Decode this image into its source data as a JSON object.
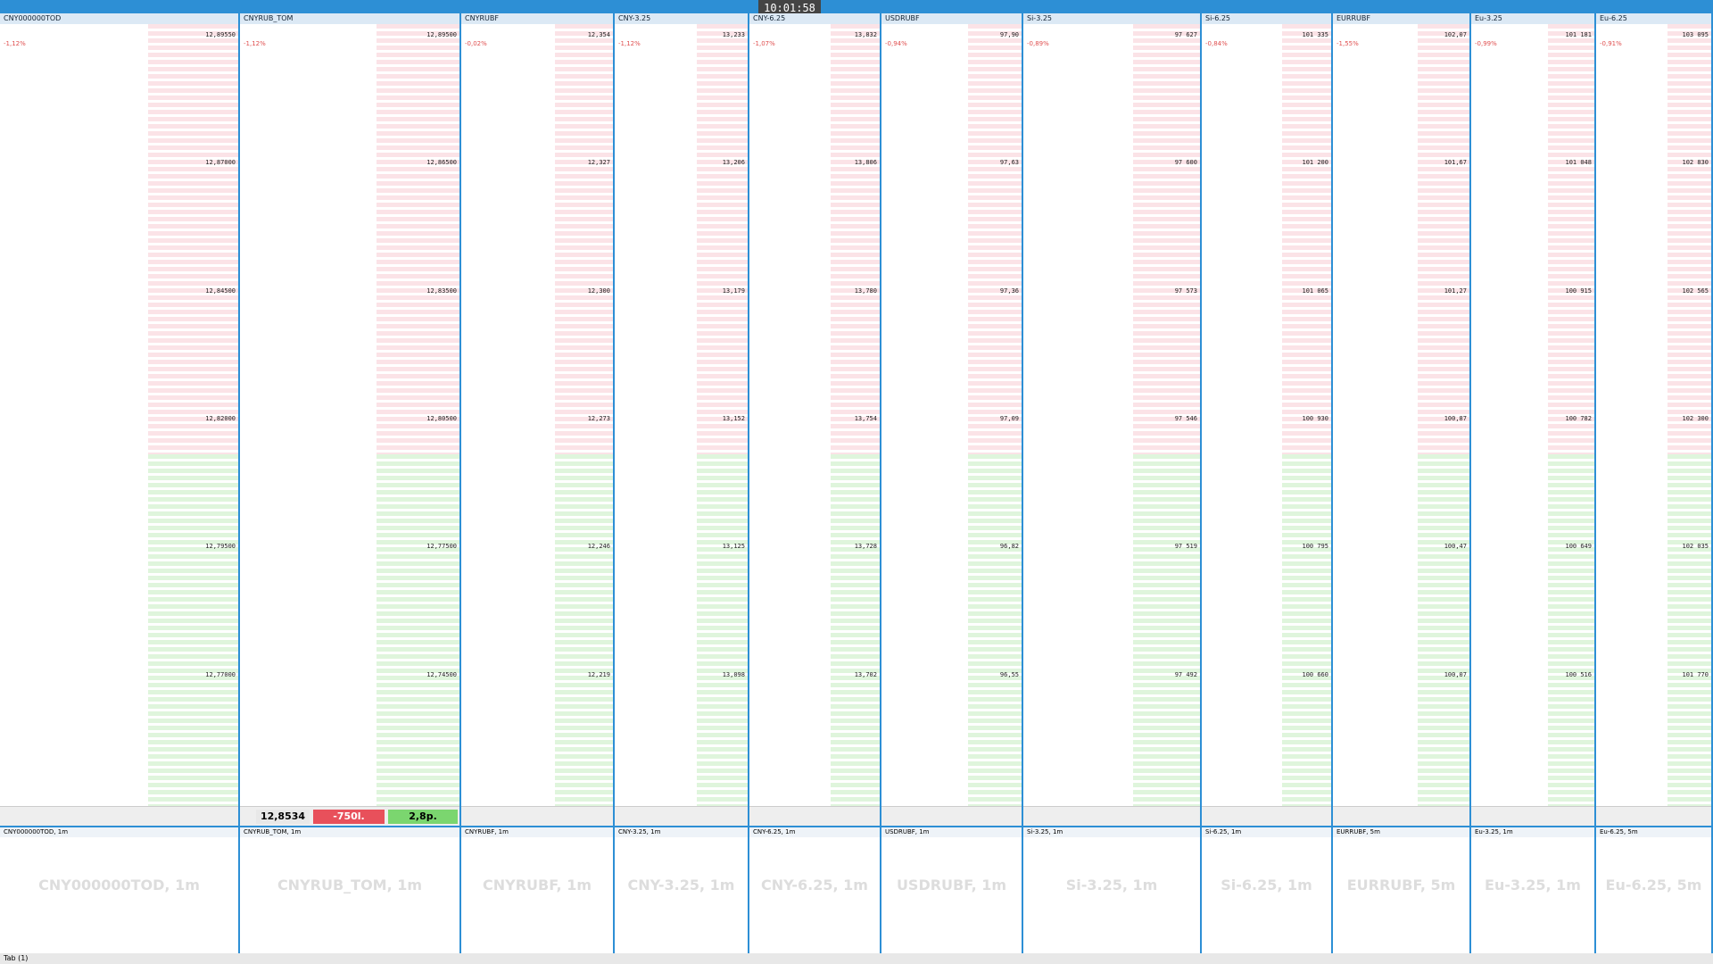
{
  "header": {
    "clock": "10:01:58"
  },
  "panels": [
    {
      "tab": "CNY000000TOD",
      "change": "-1,12%",
      "prices": [
        "12,89550",
        "12,87000",
        "12,84500",
        "12,82000",
        "12,79500",
        "12,77000"
      ]
    },
    {
      "tab": "CNYRUB_TOM",
      "change": "-1,12%",
      "prices": [
        "12,89500",
        "12,86500",
        "12,83500",
        "12,80500",
        "12,77500",
        "12,74500"
      ]
    },
    {
      "tab": "CNYRUBF",
      "change": "-0,02%",
      "prices": [
        "12,354",
        "12,327",
        "12,300",
        "12,273",
        "12,246",
        "12,219"
      ]
    },
    {
      "tab": "CNY-3.25",
      "change": "-1,12%",
      "prices": [
        "13,233",
        "13,206",
        "13,179",
        "13,152",
        "13,125",
        "13,098"
      ]
    },
    {
      "tab": "CNY-6.25",
      "change": "-1,07%",
      "prices": [
        "13,832",
        "13,806",
        "13,780",
        "13,754",
        "13,728",
        "13,702"
      ]
    },
    {
      "tab": "USDRUBF",
      "change": "-0,94%",
      "prices": [
        "97,90",
        "97,63",
        "97,36",
        "97,09",
        "96,82",
        "96,55"
      ]
    },
    {
      "tab": "Si-3.25",
      "change": "-0,89%",
      "prices": [
        "97 627",
        "97 600",
        "97 573",
        "97 546",
        "97 519",
        "97 492"
      ]
    },
    {
      "tab": "Si-6.25",
      "change": "-0,84%",
      "prices": [
        "101 335",
        "101 200",
        "101 065",
        "100 930",
        "100 795",
        "100 660"
      ]
    },
    {
      "tab": "EURRUBF",
      "change": "-1,55%",
      "prices": [
        "102,07",
        "101,67",
        "101,27",
        "100,87",
        "100,47",
        "100,07"
      ]
    },
    {
      "tab": "Eu-3.25",
      "change": "-0,99%",
      "prices": [
        "101 181",
        "101 048",
        "100 915",
        "100 782",
        "100 649",
        "100 516"
      ]
    },
    {
      "tab": "Eu-6.25",
      "change": "-0,91%",
      "prices": [
        "103 095",
        "102 830",
        "102 565",
        "102 300",
        "102 035",
        "101 770"
      ]
    }
  ],
  "footer": {
    "price": "12,8534",
    "volume": "-750l.",
    "spread": "2,8p."
  },
  "charts": [
    "CNY000000TOD, 1m",
    "CNYRUB_TOM, 1m",
    "CNYRUBF, 1m",
    "CNY-3.25, 1m",
    "CNY-6.25, 1m",
    "USDRUBF, 1m",
    "Si-3.25, 1m",
    "Si-6.25, 1m",
    "EURRUBF, 5m",
    "Eu-3.25, 1m",
    "Eu-6.25, 5m"
  ],
  "status": "Tab (1)"
}
